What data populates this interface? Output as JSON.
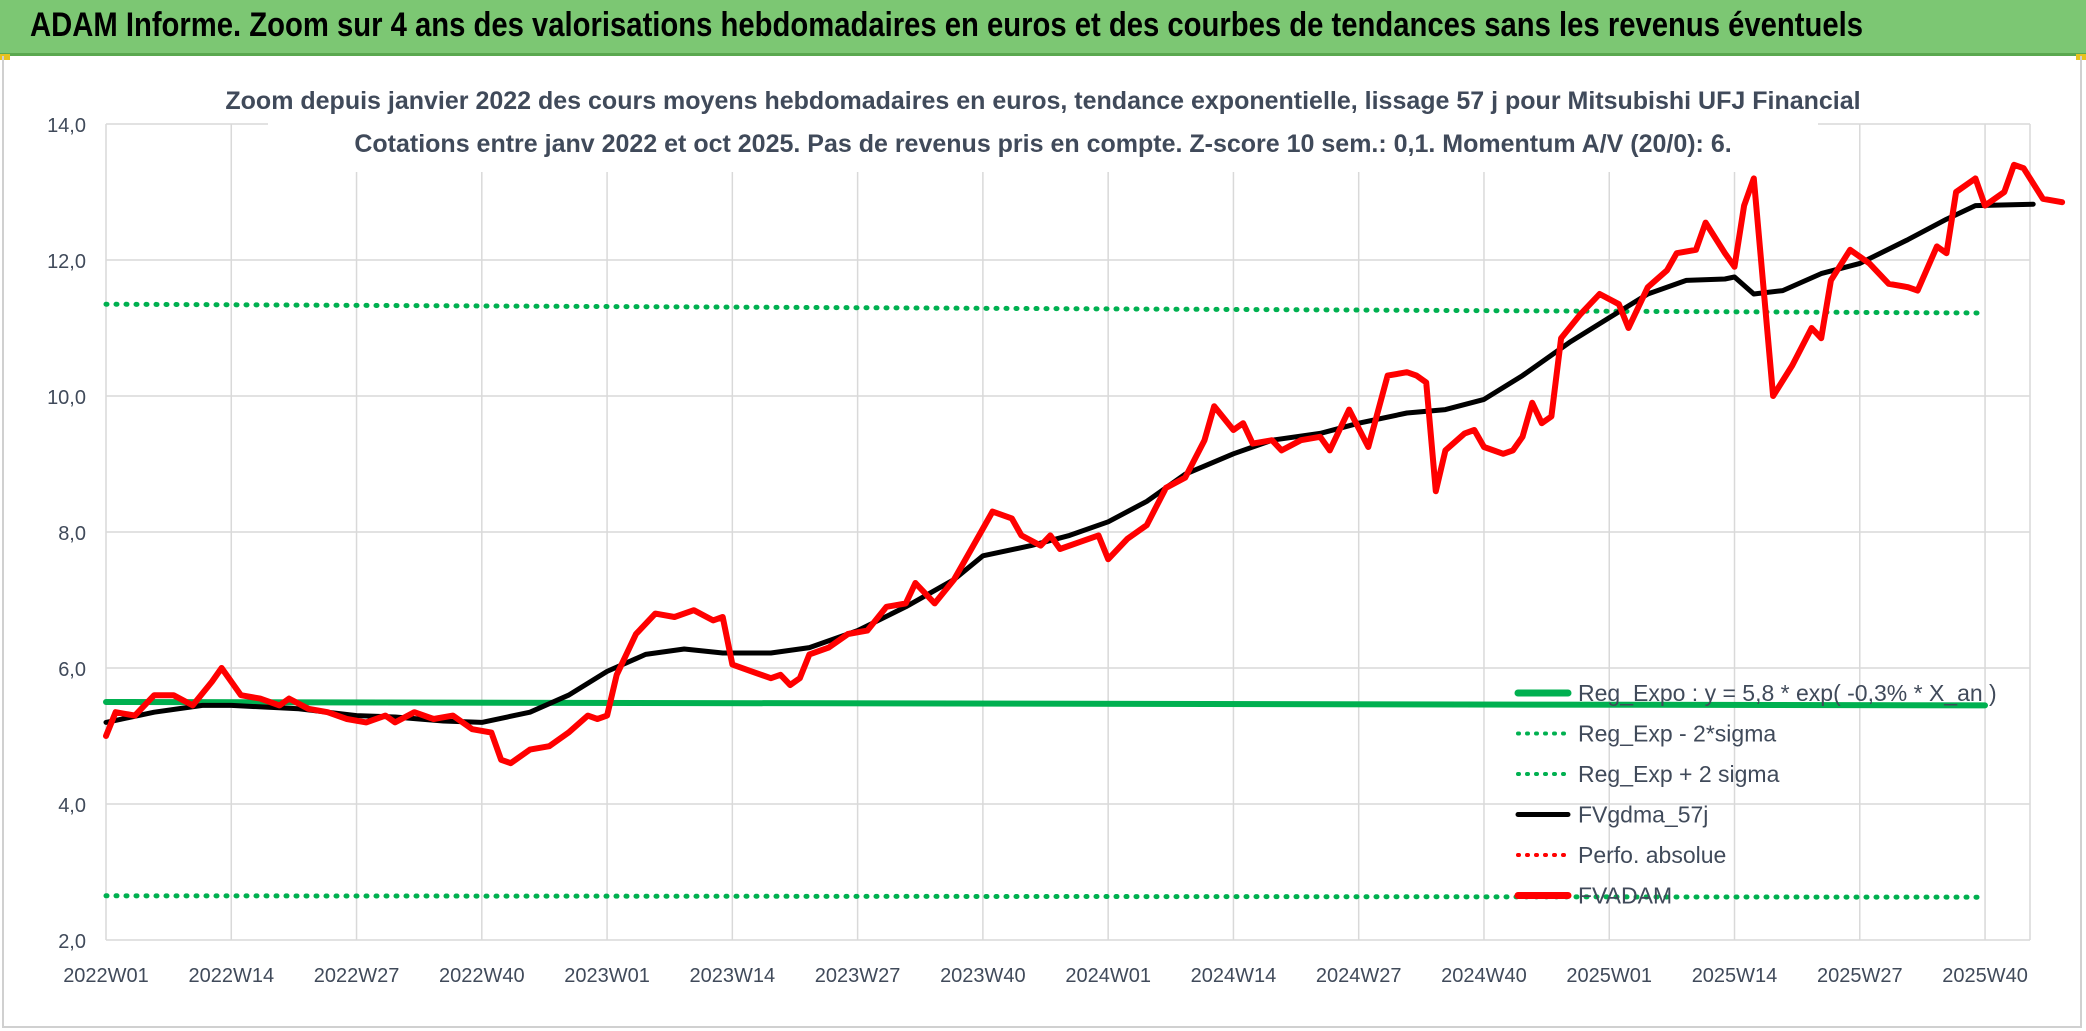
{
  "banner": {
    "title": "ADAM Informe. Zoom sur 4 ans des valorisations hebdomadaires en euros et des courbes de tendances sans les revenus éventuels"
  },
  "colors": {
    "banner": "#7cc773",
    "reg_expo": "#00b050",
    "fvgdma": "#000000",
    "fvadam": "#ff0000",
    "perfo": "#ff0000",
    "grid": "#d9d9d9"
  },
  "chart_data": {
    "type": "line",
    "title": "Zoom depuis janvier 2022 des cours moyens hebdomadaires en euros, tendance exponentielle, lissage 57 j pour Mitsubishi UFJ Financial",
    "subtitle": "Cotations entre janv 2022 et oct 2025. Pas de revenus pris en compte. Z-score 10 sem.: 0,1. Momentum A/V (20/0): 6.",
    "xlabel": "",
    "ylabel": "",
    "ylim": [
      2.0,
      14.0
    ],
    "y_ticks": [
      "2,0",
      "4,0",
      "6,0",
      "8,0",
      "10,0",
      "12,0",
      "14,0"
    ],
    "x_ticks": [
      "2022W01",
      "2022W14",
      "2022W27",
      "2022W40",
      "2023W01",
      "2023W14",
      "2023W27",
      "2023W40",
      "2024W01",
      "2024W14",
      "2024W27",
      "2024W40",
      "2025W01",
      "2025W14",
      "2025W27",
      "2025W40"
    ],
    "grid": "vertical and horizontal",
    "legend_position": "bottom-right",
    "legend": [
      {
        "label": "Reg_Expo : y = 5,8 * exp( -0,3% * X_an )",
        "style": "solid-thick",
        "color": "#00b050"
      },
      {
        "label": "Reg_Exp - 2*sigma",
        "style": "dotted",
        "color": "#00b050"
      },
      {
        "label": "Reg_Exp + 2 sigma",
        "style": "dotted",
        "color": "#00b050"
      },
      {
        "label": "FVgdma_57j",
        "style": "solid",
        "color": "#000000"
      },
      {
        "label": "Perfo. absolue",
        "style": "dotted",
        "color": "#ff0000"
      },
      {
        "label": "FVADAM",
        "style": "solid-thick",
        "color": "#ff0000"
      }
    ],
    "series": [
      {
        "name": "Reg_Expo : y = 5,8 * exp( -0,3% * X_an )",
        "points": [
          [
            0,
            5.5
          ],
          [
            195,
            5.45
          ]
        ]
      },
      {
        "name": "Reg_Exp + 2 sigma",
        "points": [
          [
            0,
            11.35
          ],
          [
            195,
            11.22
          ]
        ]
      },
      {
        "name": "Reg_Exp - 2*sigma",
        "points": [
          [
            0,
            2.65
          ],
          [
            195,
            2.63
          ]
        ]
      },
      {
        "name": "FVgdma_57j",
        "points": [
          [
            0,
            5.2
          ],
          [
            5,
            5.35
          ],
          [
            10,
            5.45
          ],
          [
            13,
            5.45
          ],
          [
            20,
            5.4
          ],
          [
            26,
            5.3
          ],
          [
            30,
            5.28
          ],
          [
            35,
            5.22
          ],
          [
            39,
            5.2
          ],
          [
            44,
            5.35
          ],
          [
            48,
            5.6
          ],
          [
            52,
            5.95
          ],
          [
            56,
            6.2
          ],
          [
            60,
            6.28
          ],
          [
            64,
            6.22
          ],
          [
            69,
            6.22
          ],
          [
            73,
            6.3
          ],
          [
            78,
            6.55
          ],
          [
            83,
            6.9
          ],
          [
            88,
            7.3
          ],
          [
            91,
            7.65
          ],
          [
            96,
            7.8
          ],
          [
            100,
            7.95
          ],
          [
            104,
            8.15
          ],
          [
            108,
            8.45
          ],
          [
            112,
            8.85
          ],
          [
            117,
            9.15
          ],
          [
            121,
            9.35
          ],
          [
            126,
            9.45
          ],
          [
            130,
            9.6
          ],
          [
            135,
            9.75
          ],
          [
            139,
            9.8
          ],
          [
            143,
            9.95
          ],
          [
            147,
            10.3
          ],
          [
            152,
            10.8
          ],
          [
            156,
            11.15
          ],
          [
            160,
            11.5
          ],
          [
            164,
            11.7
          ],
          [
            168,
            11.72
          ],
          [
            169,
            11.75
          ],
          [
            171,
            11.5
          ],
          [
            174,
            11.55
          ],
          [
            178,
            11.8
          ],
          [
            182,
            11.95
          ],
          [
            187,
            12.3
          ],
          [
            191,
            12.6
          ],
          [
            194,
            12.8
          ],
          [
            200,
            12.82
          ]
        ]
      },
      {
        "name": "FVADAM",
        "points": [
          [
            0,
            5.0
          ],
          [
            1,
            5.35
          ],
          [
            3,
            5.3
          ],
          [
            5,
            5.6
          ],
          [
            7,
            5.6
          ],
          [
            9,
            5.45
          ],
          [
            11,
            5.8
          ],
          [
            12,
            6.0
          ],
          [
            14,
            5.6
          ],
          [
            16,
            5.55
          ],
          [
            18,
            5.45
          ],
          [
            19,
            5.55
          ],
          [
            21,
            5.4
          ],
          [
            23,
            5.35
          ],
          [
            25,
            5.25
          ],
          [
            27,
            5.2
          ],
          [
            29,
            5.3
          ],
          [
            30,
            5.2
          ],
          [
            32,
            5.35
          ],
          [
            34,
            5.25
          ],
          [
            36,
            5.3
          ],
          [
            38,
            5.1
          ],
          [
            40,
            5.05
          ],
          [
            41,
            4.65
          ],
          [
            42,
            4.6
          ],
          [
            44,
            4.8
          ],
          [
            46,
            4.85
          ],
          [
            48,
            5.05
          ],
          [
            50,
            5.3
          ],
          [
            51,
            5.25
          ],
          [
            52,
            5.3
          ],
          [
            53,
            5.9
          ],
          [
            55,
            6.5
          ],
          [
            57,
            6.8
          ],
          [
            59,
            6.75
          ],
          [
            61,
            6.85
          ],
          [
            63,
            6.7
          ],
          [
            64,
            6.75
          ],
          [
            65,
            6.05
          ],
          [
            67,
            5.95
          ],
          [
            69,
            5.85
          ],
          [
            70,
            5.9
          ],
          [
            71,
            5.75
          ],
          [
            72,
            5.85
          ],
          [
            73,
            6.2
          ],
          [
            75,
            6.3
          ],
          [
            77,
            6.5
          ],
          [
            79,
            6.55
          ],
          [
            81,
            6.9
          ],
          [
            83,
            6.95
          ],
          [
            84,
            7.25
          ],
          [
            86,
            6.95
          ],
          [
            88,
            7.3
          ],
          [
            90,
            7.8
          ],
          [
            92,
            8.3
          ],
          [
            94,
            8.2
          ],
          [
            95,
            7.95
          ],
          [
            97,
            7.8
          ],
          [
            98,
            7.95
          ],
          [
            99,
            7.75
          ],
          [
            101,
            7.85
          ],
          [
            103,
            7.95
          ],
          [
            104,
            7.6
          ],
          [
            106,
            7.9
          ],
          [
            108,
            8.1
          ],
          [
            110,
            8.65
          ],
          [
            112,
            8.8
          ],
          [
            114,
            9.35
          ],
          [
            115,
            9.85
          ],
          [
            117,
            9.5
          ],
          [
            118,
            9.6
          ],
          [
            119,
            9.3
          ],
          [
            121,
            9.35
          ],
          [
            122,
            9.2
          ],
          [
            124,
            9.35
          ],
          [
            126,
            9.4
          ],
          [
            127,
            9.2
          ],
          [
            129,
            9.8
          ],
          [
            131,
            9.25
          ],
          [
            133,
            10.3
          ],
          [
            135,
            10.35
          ],
          [
            136,
            10.3
          ],
          [
            137,
            10.2
          ],
          [
            138,
            8.6
          ],
          [
            139,
            9.2
          ],
          [
            141,
            9.45
          ],
          [
            142,
            9.5
          ],
          [
            143,
            9.25
          ],
          [
            145,
            9.15
          ],
          [
            146,
            9.2
          ],
          [
            147,
            9.4
          ],
          [
            148,
            9.9
          ],
          [
            149,
            9.6
          ],
          [
            150,
            9.7
          ],
          [
            151,
            10.85
          ],
          [
            153,
            11.2
          ],
          [
            155,
            11.5
          ],
          [
            157,
            11.35
          ],
          [
            158,
            11.0
          ],
          [
            160,
            11.6
          ],
          [
            162,
            11.85
          ],
          [
            163,
            12.1
          ],
          [
            165,
            12.15
          ],
          [
            166,
            12.55
          ],
          [
            168,
            12.1
          ],
          [
            169,
            11.9
          ],
          [
            170,
            12.8
          ],
          [
            171,
            13.2
          ],
          [
            173,
            10.0
          ],
          [
            175,
            10.45
          ],
          [
            177,
            11.0
          ],
          [
            178,
            10.85
          ],
          [
            179,
            11.7
          ],
          [
            181,
            12.15
          ],
          [
            183,
            11.95
          ],
          [
            185,
            11.65
          ],
          [
            187,
            11.6
          ],
          [
            188,
            11.55
          ],
          [
            190,
            12.2
          ],
          [
            191,
            12.1
          ],
          [
            192,
            13.0
          ],
          [
            194,
            13.2
          ],
          [
            195,
            12.8
          ],
          [
            197,
            13.0
          ],
          [
            198,
            13.4
          ],
          [
            199,
            13.35
          ],
          [
            201,
            12.9
          ],
          [
            203,
            12.85
          ]
        ]
      }
    ]
  }
}
